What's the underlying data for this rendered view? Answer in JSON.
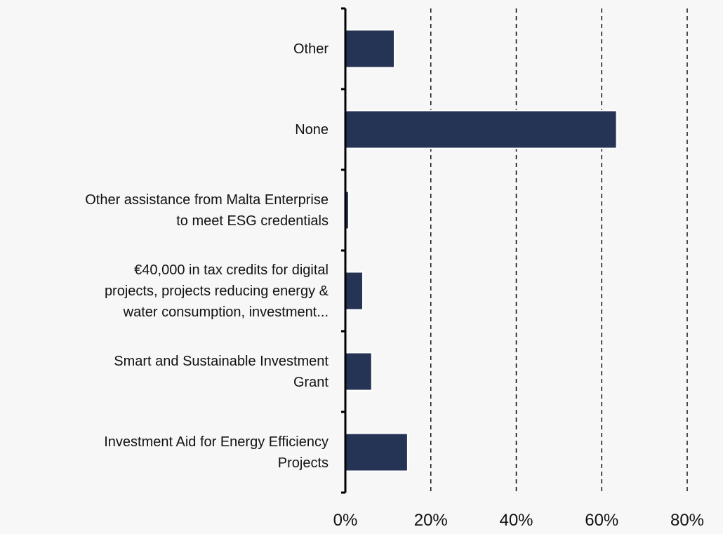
{
  "chart_data": {
    "type": "barh",
    "categories": [
      "Other",
      "None",
      "Other assistance from Malta Enterprise\nto meet ESG credentials",
      "€40,000 in tax credits for digital\nprojects, projects reducing energy &\nwater consumption, investment...",
      "Smart and Sustainable Investment\nGrant",
      "Investment Aid for Energy Efficiency\nProjects"
    ],
    "values": [
      11.5,
      63.5,
      0.8,
      4.1,
      6.2,
      14.6
    ],
    "color": "#253354",
    "xlim": [
      0,
      80
    ],
    "xticks": [
      {
        "value": 0,
        "label": "0%"
      },
      {
        "value": 20,
        "label": "20%"
      },
      {
        "value": 40,
        "label": "40%"
      },
      {
        "value": 60,
        "label": "60%"
      },
      {
        "value": 80,
        "label": "80%"
      }
    ],
    "grid": true
  }
}
